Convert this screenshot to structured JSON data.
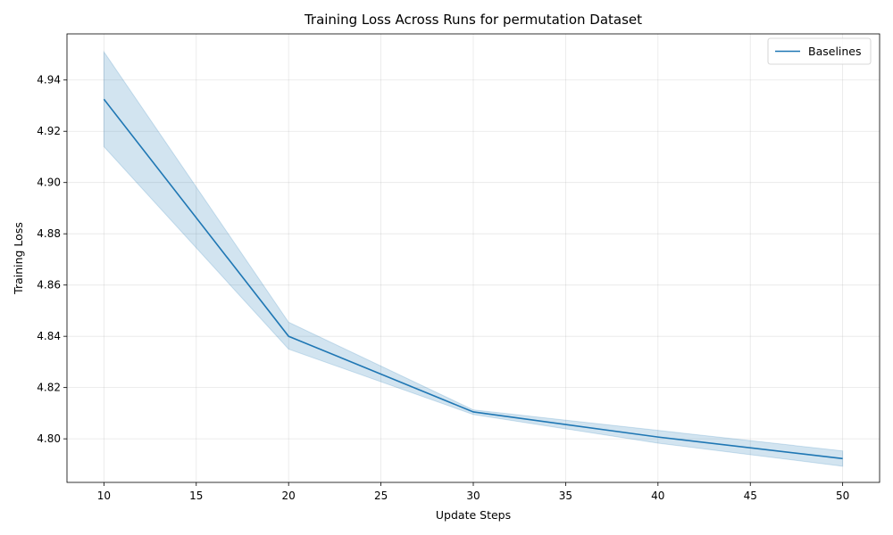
{
  "chart_data": {
    "type": "line",
    "title": "Training Loss Across Runs for permutation Dataset",
    "xlabel": "Update Steps",
    "ylabel": "Training Loss",
    "xlim": [
      8,
      52
    ],
    "ylim": [
      4.783,
      4.958
    ],
    "xticks": [
      10,
      15,
      20,
      25,
      30,
      35,
      40,
      45,
      50
    ],
    "yticks": [
      4.8,
      4.82,
      4.84,
      4.86,
      4.88,
      4.9,
      4.92,
      4.94
    ],
    "ytick_labels": [
      "4.80",
      "4.82",
      "4.84",
      "4.86",
      "4.88",
      "4.90",
      "4.92",
      "4.94"
    ],
    "grid": true,
    "legend_position": "top-right",
    "series": [
      {
        "name": "Baselines",
        "color": "#1f77b4",
        "band_color": "#1f77b4",
        "x": [
          10,
          20,
          30,
          40,
          50
        ],
        "y": [
          4.9325,
          4.84,
          4.8105,
          4.8007,
          4.7923
        ],
        "lower": [
          4.914,
          4.835,
          4.8095,
          4.7983,
          4.7893
        ],
        "upper": [
          4.951,
          4.8455,
          4.8113,
          4.8033,
          4.7953
        ]
      }
    ]
  }
}
